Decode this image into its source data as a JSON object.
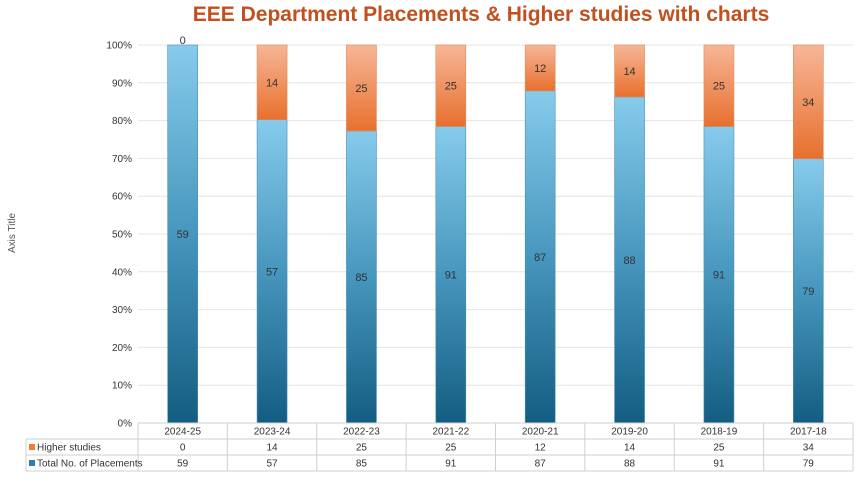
{
  "chart_data": {
    "type": "bar",
    "stacked": "percent",
    "title": "EEE Department Placements & Higher studies with charts",
    "xlabel": "",
    "ylabel": "Axis Title",
    "ylim": [
      0,
      100
    ],
    "y_ticks": [
      "0%",
      "10%",
      "20%",
      "30%",
      "40%",
      "50%",
      "60%",
      "70%",
      "80%",
      "90%",
      "100%"
    ],
    "categories": [
      "2024-25",
      "2023-24",
      "2022-23",
      "2021-22",
      "2020-21",
      "2019-20",
      "2018-19",
      "2017-18"
    ],
    "series": [
      {
        "name": "Total No. of Placements",
        "values": [
          59,
          57,
          85,
          91,
          87,
          88,
          91,
          79
        ],
        "color": "#2e7fa6"
      },
      {
        "name": "Higher studies",
        "values": [
          0,
          14,
          25,
          25,
          12,
          14,
          25,
          34
        ],
        "color": "#ee7d3a"
      }
    ],
    "data_table": true,
    "grid": true
  }
}
